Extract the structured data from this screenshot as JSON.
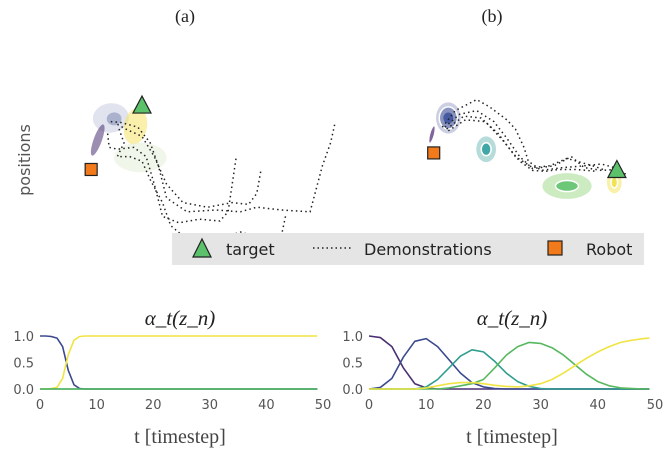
{
  "chart_data": [
    {
      "type": "scatter",
      "panel_label": "(a)",
      "ylabel": "positions",
      "gaussians": [
        {
          "color": "#c9cde0",
          "center": [
            0.62,
            0.62
          ],
          "rx": 0.22,
          "ry": 0.16,
          "rot": -5
        },
        {
          "color": "#7f88b5",
          "center": [
            0.66,
            0.61
          ],
          "rx": 0.09,
          "ry": 0.07,
          "rot": -5
        },
        {
          "color": "#4a2f73",
          "center": [
            0.46,
            0.38
          ],
          "rx": 0.05,
          "ry": 0.18,
          "rot": 20
        },
        {
          "color": "#f5e266",
          "center": [
            0.92,
            0.53
          ],
          "rx": 0.14,
          "ry": 0.2,
          "rot": 10
        },
        {
          "color": "#e3efd9",
          "center": [
            0.98,
            0.19
          ],
          "rx": 0.32,
          "ry": 0.16,
          "rot": 0
        }
      ],
      "target": {
        "x": 1.0,
        "y": 0.76
      },
      "robot": {
        "x": 0.38,
        "y": 0.06
      },
      "demonstrations": [
        [
          [
            0.7,
            0.55
          ],
          [
            0.8,
            0.5
          ],
          [
            1.0,
            0.42
          ],
          [
            1.15,
            0.2
          ],
          [
            1.3,
            -0.1
          ],
          [
            1.5,
            -0.3
          ],
          [
            1.8,
            -0.35
          ],
          [
            2.1,
            -0.3
          ],
          [
            2.3,
            -0.32
          ],
          [
            2.4,
            -0.2
          ],
          [
            2.45,
            0.05
          ]
        ],
        [
          [
            0.62,
            0.58
          ],
          [
            0.75,
            0.57
          ],
          [
            0.95,
            0.52
          ],
          [
            1.1,
            0.35
          ],
          [
            1.2,
            0.1
          ],
          [
            1.3,
            -0.25
          ],
          [
            1.55,
            -0.4
          ],
          [
            1.9,
            -0.38
          ],
          [
            2.2,
            -0.4
          ],
          [
            2.4,
            -0.35
          ],
          [
            2.7,
            -0.38
          ],
          [
            3.05,
            -0.4
          ],
          [
            3.2,
            0.1
          ],
          [
            3.3,
            0.35
          ],
          [
            3.35,
            0.55
          ]
        ],
        [
          [
            0.72,
            0.5
          ],
          [
            0.78,
            0.35
          ],
          [
            0.7,
            0.2
          ],
          [
            0.85,
            0.2
          ],
          [
            1.0,
            0.15
          ],
          [
            1.1,
            -0.05
          ],
          [
            1.25,
            -0.3
          ],
          [
            1.35,
            -0.55
          ],
          [
            1.55,
            -0.7
          ],
          [
            1.8,
            -0.65
          ],
          [
            2.0,
            -0.68
          ],
          [
            2.2,
            -0.62
          ],
          [
            2.5,
            -0.7
          ],
          [
            2.7,
            -0.66
          ],
          [
            2.75,
            -0.45
          ]
        ],
        [
          [
            0.58,
            0.45
          ],
          [
            0.6,
            0.3
          ],
          [
            0.7,
            0.28
          ],
          [
            0.9,
            0.3
          ],
          [
            1.05,
            0.2
          ],
          [
            1.15,
            -0.1
          ],
          [
            1.25,
            -0.45
          ],
          [
            1.45,
            -0.52
          ],
          [
            1.7,
            -0.48
          ],
          [
            1.95,
            -0.5
          ],
          [
            2.05,
            -0.4
          ],
          [
            2.1,
            -0.1
          ],
          [
            2.15,
            0.2
          ]
        ]
      ]
    },
    {
      "type": "scatter",
      "panel_label": "(b)",
      "gaussians": [
        {
          "color": "#c2c7dd",
          "center": [
            0.62,
            0.62
          ],
          "rx": 0.15,
          "ry": 0.17,
          "rot": 0
        },
        {
          "color": "#7d88b8",
          "center": [
            0.62,
            0.62
          ],
          "rx": 0.11,
          "ry": 0.12,
          "rot": 0
        },
        {
          "color": "#39509a",
          "center": [
            0.62,
            0.62
          ],
          "rx": 0.06,
          "ry": 0.06,
          "rot": 0
        },
        {
          "color": "#6d4a8c",
          "center": [
            0.43,
            0.44
          ],
          "rx": 0.03,
          "ry": 0.1,
          "rot": 15
        },
        {
          "color": "#a9d6d3",
          "center": [
            1.06,
            0.28
          ],
          "rx": 0.12,
          "ry": 0.14,
          "rot": 0
        },
        {
          "color": "#2a9e9b",
          "center": [
            1.06,
            0.28
          ],
          "rx": 0.06,
          "ry": 0.07,
          "rot": 0
        },
        {
          "color": "#c4e8b6",
          "center": [
            2.0,
            -0.12
          ],
          "rx": 0.3,
          "ry": 0.14,
          "rot": 0
        },
        {
          "color": "#5cc16b",
          "center": [
            2.0,
            -0.12
          ],
          "rx": 0.14,
          "ry": 0.06,
          "rot": 0
        },
        {
          "color": "#f8ee9b",
          "center": [
            2.55,
            -0.08
          ],
          "rx": 0.09,
          "ry": 0.12,
          "rot": 0
        },
        {
          "color": "#efe144",
          "center": [
            2.55,
            -0.08
          ],
          "rx": 0.04,
          "ry": 0.06,
          "rot": 0
        }
      ],
      "target": {
        "x": 2.58,
        "y": 0.06
      },
      "robot": {
        "x": 0.45,
        "y": 0.24
      },
      "demonstrations": [
        [
          [
            0.55,
            0.52
          ],
          [
            0.7,
            0.7
          ],
          [
            0.95,
            0.82
          ],
          [
            1.1,
            0.74
          ],
          [
            1.3,
            0.6
          ],
          [
            1.4,
            0.5
          ],
          [
            1.5,
            0.3
          ],
          [
            1.55,
            0.15
          ],
          [
            1.7,
            0.05
          ],
          [
            1.95,
            0.08
          ],
          [
            2.2,
            0.1
          ],
          [
            2.4,
            0.12
          ],
          [
            2.55,
            0.08
          ],
          [
            2.7,
            0.0
          ]
        ],
        [
          [
            0.58,
            0.52
          ],
          [
            0.75,
            0.66
          ],
          [
            0.95,
            0.7
          ],
          [
            1.15,
            0.58
          ],
          [
            1.3,
            0.4
          ],
          [
            1.45,
            0.2
          ],
          [
            1.6,
            0.07
          ],
          [
            1.85,
            0.1
          ],
          [
            2.05,
            0.2
          ],
          [
            2.2,
            0.08
          ],
          [
            2.4,
            0.05
          ],
          [
            2.55,
            0.06
          ]
        ],
        [
          [
            0.6,
            0.5
          ],
          [
            0.8,
            0.64
          ],
          [
            1.0,
            0.62
          ],
          [
            1.2,
            0.45
          ],
          [
            1.4,
            0.2
          ],
          [
            1.6,
            0.08
          ],
          [
            1.8,
            0.1
          ],
          [
            2.0,
            0.18
          ],
          [
            2.3,
            0.1
          ],
          [
            2.45,
            0.05
          ]
        ],
        [
          [
            0.62,
            0.48
          ],
          [
            0.82,
            0.6
          ],
          [
            1.05,
            0.58
          ],
          [
            1.25,
            0.38
          ],
          [
            1.45,
            0.15
          ],
          [
            1.6,
            0.05
          ],
          [
            1.75,
            0.04
          ],
          [
            1.9,
            0.06
          ],
          [
            2.1,
            0.06
          ],
          [
            2.35,
            0.04
          ]
        ]
      ]
    },
    {
      "type": "line",
      "title": "α_t(z_n)",
      "xlabel": "t [timestep]",
      "xlim": [
        0,
        50
      ],
      "ylim": [
        0,
        1.0
      ],
      "xticks": [
        "0",
        "10",
        "20",
        "30",
        "40",
        "50"
      ],
      "yticks": [
        "0.0",
        "0.5",
        "1.0"
      ],
      "x": [
        0,
        1,
        2,
        3,
        4,
        5,
        6,
        7,
        8,
        9,
        10,
        11,
        12,
        13,
        14,
        15,
        16,
        17,
        18,
        19,
        20,
        21,
        22,
        23,
        24,
        25,
        26,
        27,
        28,
        29,
        30,
        31,
        32,
        33,
        34,
        35,
        36,
        37,
        38,
        39,
        40,
        41,
        42,
        43,
        44,
        45,
        46,
        47,
        48,
        49
      ],
      "series": [
        {
          "color": "#3b4a8f",
          "values": [
            1.0,
            1.0,
            0.99,
            0.96,
            0.8,
            0.35,
            0.08,
            0.01,
            0,
            0,
            0,
            0,
            0,
            0,
            0,
            0,
            0,
            0,
            0,
            0,
            0,
            0,
            0,
            0,
            0,
            0,
            0,
            0,
            0,
            0,
            0,
            0,
            0,
            0,
            0,
            0,
            0,
            0,
            0,
            0,
            0,
            0,
            0,
            0,
            0,
            0,
            0,
            0,
            0,
            0
          ]
        },
        {
          "color": "#f0e442",
          "values": [
            0.0,
            0.0,
            0.01,
            0.03,
            0.2,
            0.65,
            0.92,
            0.99,
            1.0,
            1.0,
            1.0,
            1.0,
            1.0,
            1.0,
            1.0,
            1.0,
            1.0,
            1.0,
            1.0,
            1.0,
            1.0,
            1.0,
            1.0,
            1.0,
            1.0,
            1.0,
            1.0,
            1.0,
            1.0,
            1.0,
            1.0,
            1.0,
            1.0,
            1.0,
            1.0,
            1.0,
            1.0,
            1.0,
            1.0,
            1.0,
            1.0,
            1.0,
            1.0,
            1.0,
            1.0,
            1.0,
            1.0,
            1.0,
            1.0,
            1.0
          ]
        },
        {
          "color": "#2e9e8e",
          "values": [
            0,
            0,
            0,
            0,
            0,
            0,
            0,
            0,
            0,
            0,
            0,
            0,
            0,
            0,
            0,
            0,
            0,
            0,
            0,
            0,
            0,
            0,
            0,
            0,
            0,
            0,
            0,
            0,
            0,
            0,
            0,
            0,
            0,
            0,
            0,
            0,
            0,
            0,
            0,
            0,
            0,
            0,
            0,
            0,
            0,
            0,
            0,
            0,
            0,
            0
          ]
        },
        {
          "color": "#57b85e",
          "values": [
            0,
            0,
            0,
            0,
            0,
            0,
            0,
            0,
            0,
            0,
            0,
            0,
            0,
            0,
            0,
            0,
            0,
            0,
            0,
            0,
            0,
            0,
            0,
            0,
            0,
            0,
            0,
            0,
            0,
            0,
            0,
            0,
            0,
            0,
            0,
            0,
            0,
            0,
            0,
            0,
            0,
            0,
            0,
            0,
            0,
            0,
            0,
            0,
            0,
            0
          ]
        }
      ]
    },
    {
      "type": "line",
      "title": "α_t(z_n)",
      "xlabel": "t [timestep]",
      "xlim": [
        0,
        50
      ],
      "ylim": [
        0,
        1.0
      ],
      "xticks": [
        "0",
        "10",
        "20",
        "30",
        "40",
        "50"
      ],
      "yticks": [
        "0.0",
        "0.5",
        "1.0"
      ],
      "x": [
        0,
        2,
        4,
        6,
        8,
        10,
        12,
        14,
        16,
        18,
        20,
        22,
        24,
        26,
        28,
        30,
        32,
        34,
        36,
        38,
        40,
        42,
        44,
        46,
        48,
        49
      ],
      "series": [
        {
          "color": "#4a2f73",
          "values": [
            1.0,
            0.97,
            0.8,
            0.4,
            0.1,
            0.02,
            0.0,
            0,
            0,
            0,
            0,
            0,
            0,
            0,
            0,
            0,
            0,
            0,
            0,
            0,
            0,
            0,
            0,
            0,
            0,
            0
          ]
        },
        {
          "color": "#3b4a8f",
          "values": [
            0.0,
            0.03,
            0.2,
            0.6,
            0.9,
            0.95,
            0.8,
            0.55,
            0.3,
            0.12,
            0.04,
            0.01,
            0,
            0,
            0,
            0,
            0,
            0,
            0,
            0,
            0,
            0,
            0,
            0,
            0,
            0
          ]
        },
        {
          "color": "#2e9e8e",
          "values": [
            0,
            0,
            0,
            0,
            0,
            0.04,
            0.18,
            0.4,
            0.62,
            0.74,
            0.7,
            0.52,
            0.3,
            0.14,
            0.05,
            0.01,
            0,
            0,
            0,
            0,
            0,
            0,
            0,
            0,
            0,
            0
          ]
        },
        {
          "color": "#57b85e",
          "values": [
            0,
            0,
            0,
            0,
            0,
            0,
            0,
            0.02,
            0.06,
            0.1,
            0.18,
            0.4,
            0.64,
            0.8,
            0.88,
            0.86,
            0.78,
            0.64,
            0.46,
            0.28,
            0.14,
            0.06,
            0.02,
            0.01,
            0,
            0
          ]
        },
        {
          "color": "#f0e442",
          "values": [
            0,
            0,
            0,
            0,
            0,
            0.02,
            0.06,
            0.1,
            0.12,
            0.12,
            0.1,
            0.07,
            0.05,
            0.04,
            0.06,
            0.1,
            0.18,
            0.3,
            0.44,
            0.58,
            0.7,
            0.8,
            0.88,
            0.92,
            0.95,
            0.96
          ]
        }
      ]
    }
  ],
  "legend": {
    "items": [
      {
        "label": "target",
        "marker": "triangle",
        "color": "#5cc16b"
      },
      {
        "label": "Demonstrations",
        "marker": "dotted-line",
        "color": "#222222"
      },
      {
        "label": "Robot",
        "marker": "square",
        "color": "#f27a1a"
      }
    ]
  }
}
